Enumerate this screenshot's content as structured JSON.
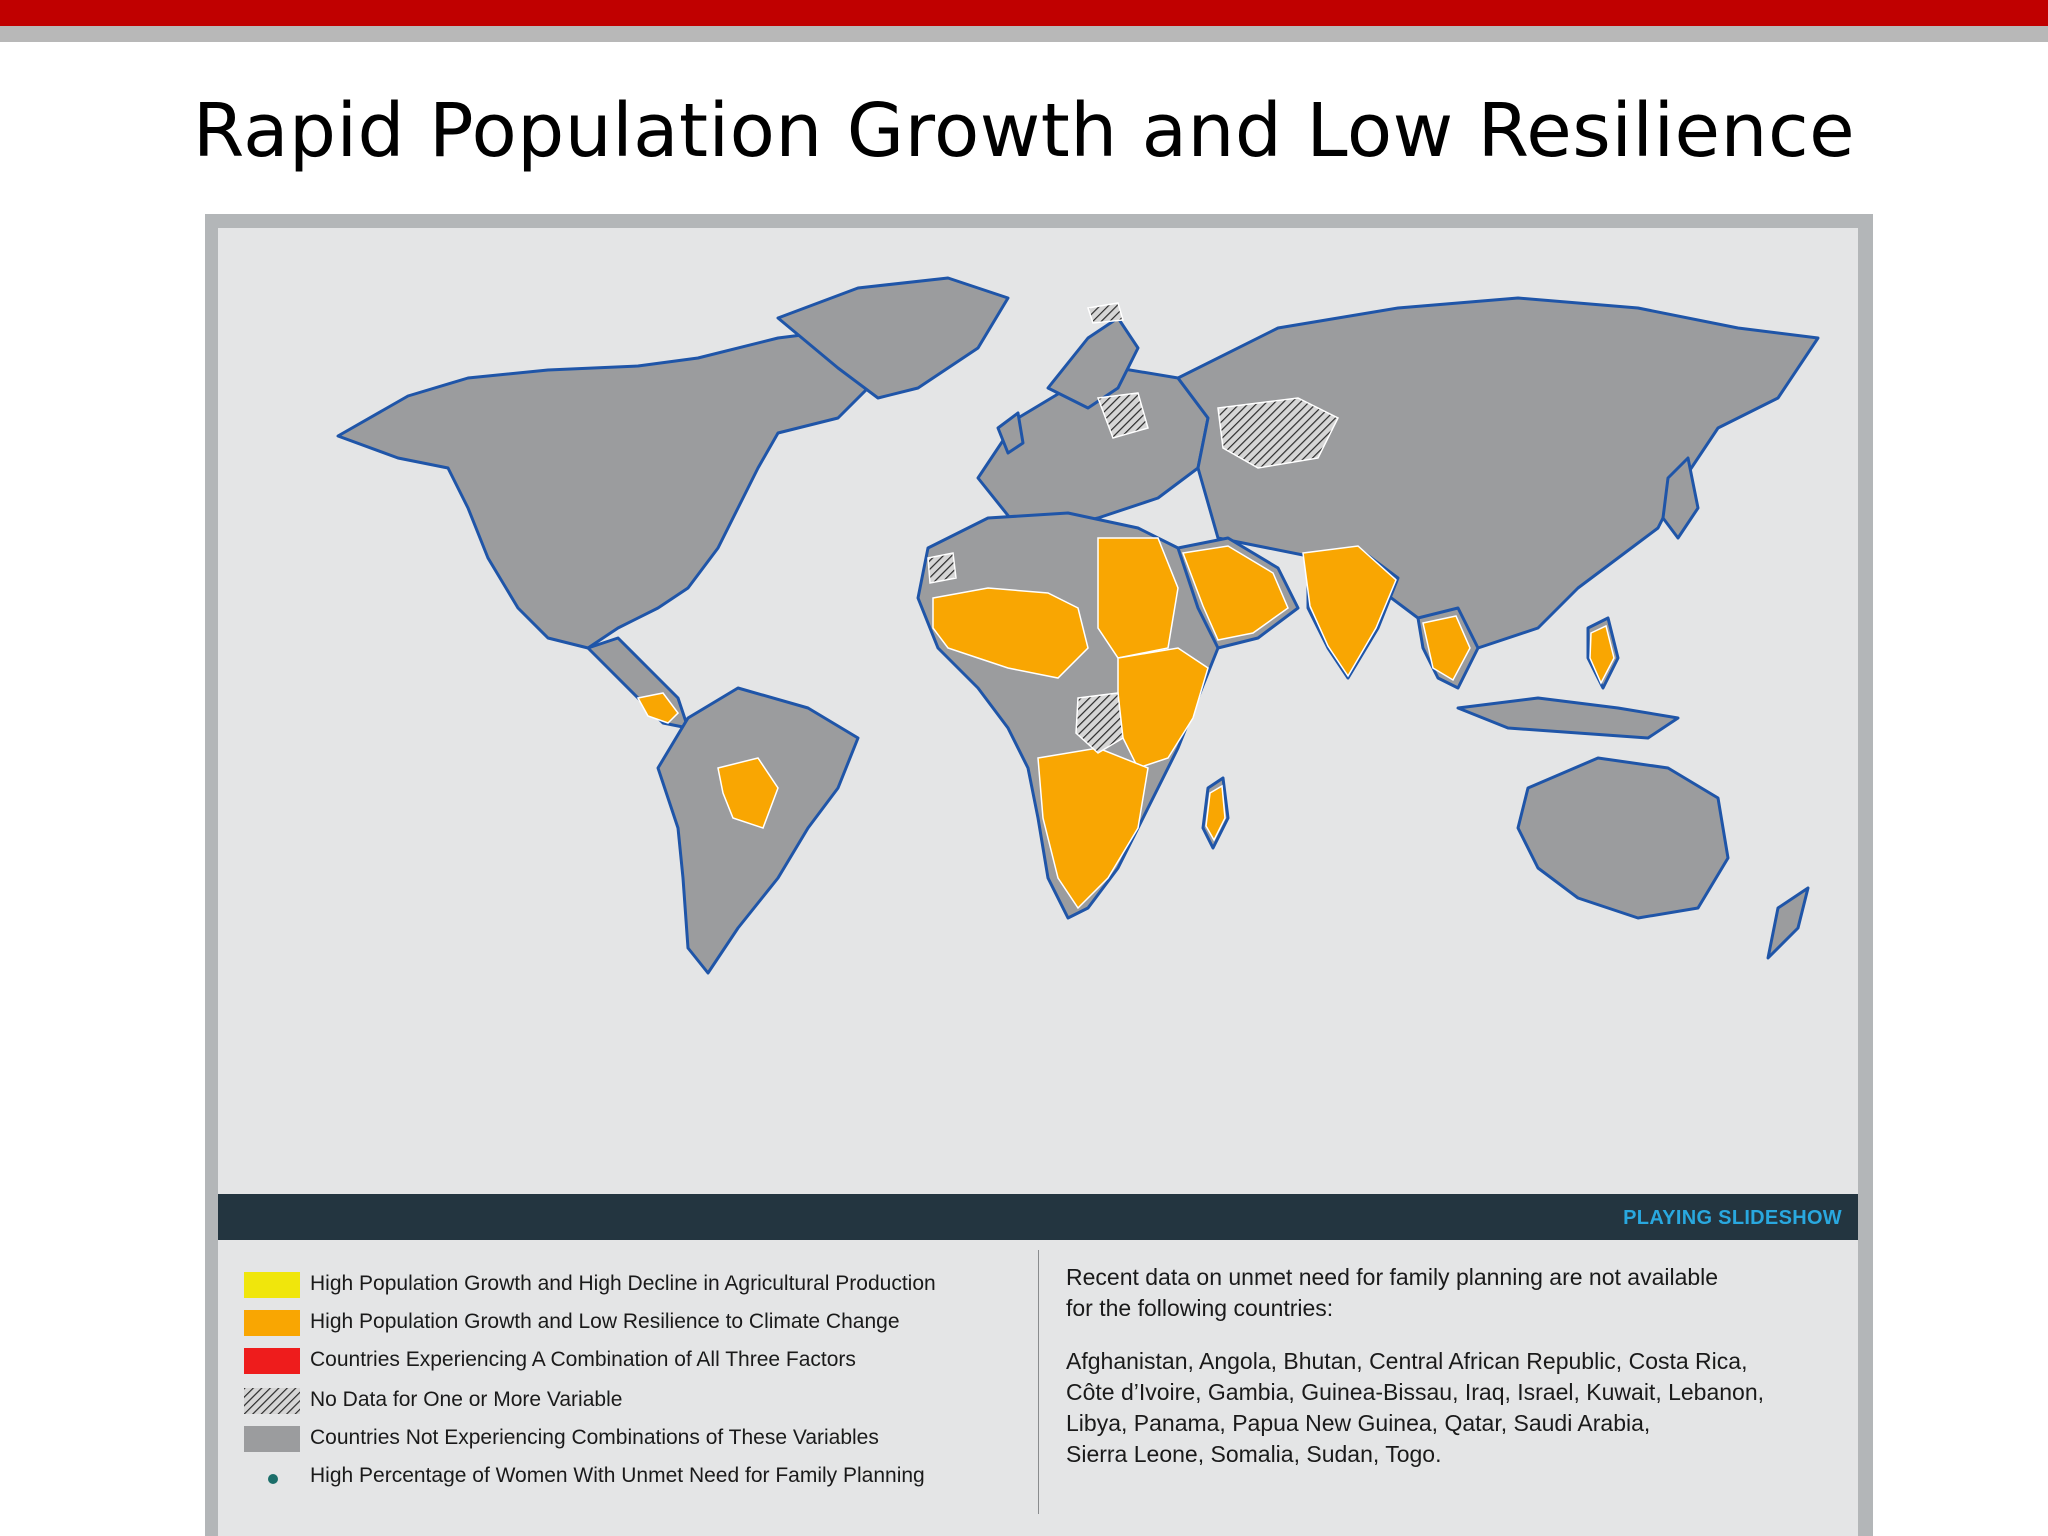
{
  "slide": {
    "title": "Rapid Population Growth and Low Resilience"
  },
  "theme": {
    "accent_red": "#c00000",
    "bar_grey": "#b8b8b8",
    "ocean": "#e4e5e6",
    "land_grey": "#9b9c9e",
    "coast_blue": "#1f55a8",
    "highlight_orange": "#f9a602",
    "highlight_yellow": "#f0e60c",
    "highlight_red": "#ee1c1c",
    "slideshow_bar": "#233540",
    "slideshow_text": "#29a8df"
  },
  "map": {
    "slideshow_label": "PLAYING SLIDESHOW",
    "highlighted_regions_orange": [
      "Central America",
      "Bolivia/Paraguay",
      "Sahel & West Africa",
      "East Africa",
      "Southern Africa",
      "Madagascar",
      "Arabian Peninsula",
      "Egypt/Sudan",
      "Pakistan/India",
      "Southeast Asia",
      "Philippines"
    ],
    "hatched_regions": [
      "Central Asia",
      "Eastern Europe",
      "Central Africa",
      "Western Sahara",
      "Svalbard"
    ]
  },
  "legend": {
    "items": [
      {
        "label": "High Population Growth and High Decline in Agricultural Production",
        "swatch": "yellow"
      },
      {
        "label": "High Population Growth and Low Resilience to Climate Change",
        "swatch": "orange"
      },
      {
        "label": "Countries Experiencing A Combination of All Three Factors",
        "swatch": "red"
      },
      {
        "label": "No Data for One or More Variable",
        "swatch": "hatch"
      },
      {
        "label": "Countries Not Experiencing Combinations of These Variables",
        "swatch": "grey"
      },
      {
        "label": "High Percentage of Women With Unmet Need for Family Planning",
        "swatch": "dot"
      }
    ],
    "note_line1": "Recent data on unmet need for family planning are not available",
    "note_line2": "for the following countries:",
    "countries_lines": [
      "Afghanistan, Angola, Bhutan, Central African Republic, Costa Rica,",
      "Côte d’Ivoire, Gambia, Guinea-Bissau, Iraq, Israel, Kuwait, Lebanon,",
      "Libya, Panama, Papua New Guinea, Qatar, Saudi Arabia,",
      "Sierra Leone, Somalia, Sudan, Togo."
    ]
  }
}
